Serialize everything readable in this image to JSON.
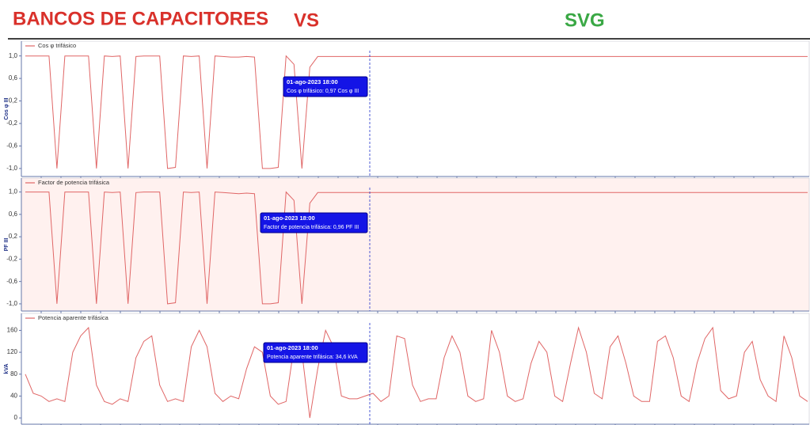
{
  "header": {
    "left": "BANCOS DE CAPACITORES",
    "middle": "VS",
    "right": "SVG"
  },
  "chart_data": [
    {
      "type": "line",
      "background": "#ffffff",
      "y_label": "Cos φ III",
      "ylim": [
        -1.1,
        1.15
      ],
      "yticks": [
        {
          "value": 1.0,
          "label": "1,0"
        },
        {
          "value": 0.6,
          "label": "0,6"
        },
        {
          "value": 0.2,
          "label": "0,2"
        },
        {
          "value": -0.2,
          "label": "-0,2"
        },
        {
          "value": -0.6,
          "label": "-0,6"
        },
        {
          "value": -1.0,
          "label": "-1,0"
        }
      ],
      "grid": false,
      "tooltip": {
        "date": "01-ago-2023 18:00",
        "text": "Cos φ trifásico: 0,97  Cos φ III"
      },
      "series": [
        {
          "name": "Cos φ trifásico",
          "color": "#e06666",
          "values": [
            1.0,
            1.0,
            1.0,
            1.0,
            -1.0,
            1.0,
            1.0,
            1.0,
            1.0,
            -1.0,
            1.0,
            0.99,
            1.0,
            -1.0,
            0.99,
            1.0,
            1.0,
            1.0,
            -1.0,
            -0.98,
            1.0,
            0.99,
            1.0,
            -1.0,
            1.0,
            0.99,
            0.98,
            0.98,
            0.99,
            0.98,
            -1.0,
            -1.0,
            -0.98,
            1.0,
            0.85,
            -1.0,
            0.8,
            0.99,
            0.99,
            0.99,
            0.99,
            0.99,
            0.99,
            0.99,
            0.99,
            0.99,
            0.99,
            0.99,
            0.99,
            0.99,
            0.99,
            0.99,
            0.99,
            0.99,
            0.99,
            0.99,
            0.99,
            0.99,
            0.99,
            0.99,
            0.99,
            0.99,
            0.99,
            0.99,
            0.99,
            0.99,
            0.99,
            0.99,
            0.99,
            0.99,
            0.99,
            0.99,
            0.99,
            0.99,
            0.99,
            0.99,
            0.99,
            0.99,
            0.99,
            0.99,
            0.99,
            0.99,
            0.99,
            0.99,
            0.99,
            0.99,
            0.99,
            0.99,
            0.99,
            0.99,
            0.99,
            0.99,
            0.99,
            0.99,
            0.99,
            0.99,
            0.99,
            0.99,
            0.99,
            0.99
          ]
        }
      ]
    },
    {
      "type": "line",
      "background": "#fff1ef",
      "y_label": "PF III",
      "ylim": [
        -1.1,
        1.15
      ],
      "yticks": [
        {
          "value": 1.0,
          "label": "1,0"
        },
        {
          "value": 0.6,
          "label": "0,6"
        },
        {
          "value": 0.2,
          "label": "0,2"
        },
        {
          "value": -0.2,
          "label": "-0,2"
        },
        {
          "value": -0.6,
          "label": "-0,6"
        },
        {
          "value": -1.0,
          "label": "-1,0"
        }
      ],
      "grid": false,
      "tooltip": {
        "date": "01-ago-2023 18:00",
        "text": "Factor de potencia trifásica: 0,96  PF III"
      },
      "series": [
        {
          "name": "Factor de potencia trifásica",
          "color": "#e06666",
          "values": [
            1.0,
            1.0,
            1.0,
            1.0,
            -1.0,
            1.0,
            1.0,
            1.0,
            1.0,
            -1.0,
            1.0,
            0.99,
            1.0,
            -1.0,
            0.99,
            1.0,
            1.0,
            1.0,
            -1.0,
            -0.98,
            1.0,
            0.99,
            1.0,
            -1.0,
            1.0,
            0.99,
            0.98,
            0.97,
            0.98,
            0.97,
            -1.0,
            -1.0,
            -0.98,
            1.0,
            0.85,
            -1.0,
            0.8,
            0.99,
            0.99,
            0.99,
            0.99,
            0.99,
            0.99,
            0.99,
            0.99,
            0.99,
            0.99,
            0.99,
            0.99,
            0.99,
            0.99,
            0.99,
            0.99,
            0.99,
            0.99,
            0.99,
            0.99,
            0.99,
            0.99,
            0.99,
            0.99,
            0.99,
            0.99,
            0.99,
            0.99,
            0.99,
            0.99,
            0.99,
            0.99,
            0.99,
            0.99,
            0.99,
            0.99,
            0.99,
            0.99,
            0.99,
            0.99,
            0.99,
            0.99,
            0.99,
            0.99,
            0.99,
            0.99,
            0.99,
            0.99,
            0.99,
            0.99,
            0.99,
            0.99,
            0.99,
            0.99,
            0.99,
            0.99,
            0.99,
            0.99,
            0.99,
            0.99,
            0.99,
            0.99,
            0.99
          ]
        }
      ]
    },
    {
      "type": "line",
      "background": "#ffffff",
      "y_label": "kVA",
      "ylim": [
        -10,
        178
      ],
      "yticks": [
        0,
        40,
        80,
        120,
        160
      ],
      "grid": false,
      "tooltip": {
        "date": "01-ago-2023 18:00",
        "text": "Potencia aparente trifásica: 34,6  kVA"
      },
      "series": [
        {
          "name": "Potencia aparente trifásica",
          "color": "#e06666",
          "values": [
            80,
            45,
            40,
            30,
            35,
            30,
            120,
            150,
            165,
            60,
            30,
            25,
            35,
            30,
            110,
            140,
            150,
            60,
            30,
            35,
            30,
            130,
            160,
            130,
            45,
            30,
            40,
            35,
            90,
            130,
            120,
            40,
            25,
            30,
            130,
            120,
            0,
            90,
            160,
            130,
            40,
            35,
            35,
            40,
            45,
            30,
            40,
            150,
            145,
            60,
            30,
            35,
            35,
            110,
            150,
            120,
            40,
            30,
            35,
            160,
            120,
            40,
            30,
            35,
            100,
            140,
            120,
            40,
            30,
            100,
            165,
            120,
            45,
            35,
            130,
            150,
            100,
            40,
            30,
            30,
            140,
            150,
            110,
            40,
            30,
            100,
            145,
            165,
            50,
            35,
            40,
            120,
            140,
            70,
            40,
            30,
            150,
            110,
            40,
            30
          ]
        }
      ]
    }
  ]
}
